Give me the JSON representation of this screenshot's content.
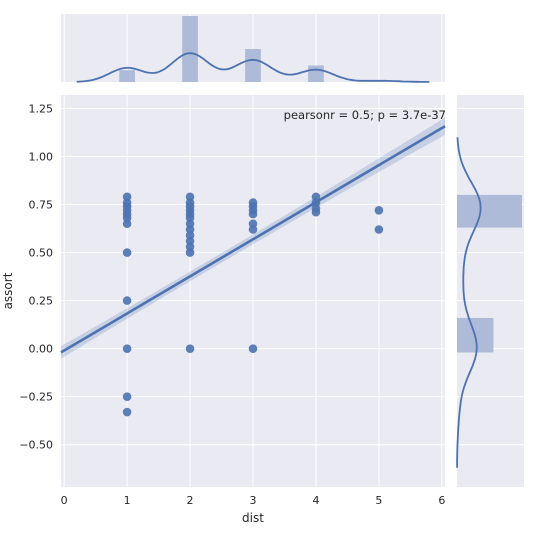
{
  "chart_data": {
    "type": "jointplot",
    "main": {
      "type": "scatter",
      "xlabel": "dist",
      "ylabel": "assort",
      "xlim": [
        -0.05,
        6.05
      ],
      "ylim": [
        -0.72,
        1.32
      ],
      "xticks": [
        0,
        1,
        2,
        3,
        4,
        5,
        6
      ],
      "yticks": [
        -0.5,
        -0.25,
        0.0,
        0.25,
        0.5,
        0.75,
        1.0,
        1.25
      ],
      "ytick_labels": [
        "−0.50",
        "−0.25",
        "0.00",
        "0.25",
        "0.50",
        "0.75",
        "1.00",
        "1.25"
      ],
      "annotation": "pearsonr = 0.5; p = 3.7e-37",
      "points": [
        {
          "x": 1,
          "y": 0.79
        },
        {
          "x": 1,
          "y": 0.76
        },
        {
          "x": 1,
          "y": 0.74
        },
        {
          "x": 1,
          "y": 0.72
        },
        {
          "x": 1,
          "y": 0.7
        },
        {
          "x": 1,
          "y": 0.68
        },
        {
          "x": 1,
          "y": 0.65
        },
        {
          "x": 1,
          "y": 0.5
        },
        {
          "x": 1,
          "y": 0.25
        },
        {
          "x": 1,
          "y": 0.0
        },
        {
          "x": 1,
          "y": -0.25
        },
        {
          "x": 1,
          "y": -0.33
        },
        {
          "x": 2,
          "y": 0.79
        },
        {
          "x": 2,
          "y": 0.76
        },
        {
          "x": 2,
          "y": 0.74
        },
        {
          "x": 2,
          "y": 0.72
        },
        {
          "x": 2,
          "y": 0.7
        },
        {
          "x": 2,
          "y": 0.68
        },
        {
          "x": 2,
          "y": 0.65
        },
        {
          "x": 2,
          "y": 0.62
        },
        {
          "x": 2,
          "y": 0.59
        },
        {
          "x": 2,
          "y": 0.56
        },
        {
          "x": 2,
          "y": 0.53
        },
        {
          "x": 2,
          "y": 0.5
        },
        {
          "x": 2,
          "y": 0.0
        },
        {
          "x": 3,
          "y": 0.76
        },
        {
          "x": 3,
          "y": 0.74
        },
        {
          "x": 3,
          "y": 0.72
        },
        {
          "x": 3,
          "y": 0.7
        },
        {
          "x": 3,
          "y": 0.65
        },
        {
          "x": 3,
          "y": 0.62
        },
        {
          "x": 3,
          "y": 0.0
        },
        {
          "x": 4,
          "y": 0.79
        },
        {
          "x": 4,
          "y": 0.76
        },
        {
          "x": 4,
          "y": 0.73
        },
        {
          "x": 4,
          "y": 0.71
        },
        {
          "x": 5,
          "y": 0.72
        },
        {
          "x": 5,
          "y": 0.62
        }
      ],
      "regression": {
        "intercept": -0.01,
        "slope": 0.193,
        "ci_halfwidth_at_mean": 0.025,
        "ci_halfwidth_at_ends": 0.045
      }
    },
    "marginal_x": {
      "type": "histogram_kde",
      "bin_centers": [
        1,
        2,
        3,
        4,
        5
      ],
      "counts": [
        0.18,
        1.0,
        0.5,
        0.25,
        0.0
      ]
    },
    "marginal_y": {
      "type": "histogram_kde",
      "bins": [
        {
          "from": -0.02,
          "to": 0.16,
          "count": 0.56
        },
        {
          "from": 0.63,
          "to": 0.8,
          "count": 1.0
        }
      ]
    },
    "colors": {
      "background": "#eaeaf2",
      "grid": "#ffffff",
      "series": "#4c72b0",
      "hist_fill": "#aebbd8"
    }
  }
}
